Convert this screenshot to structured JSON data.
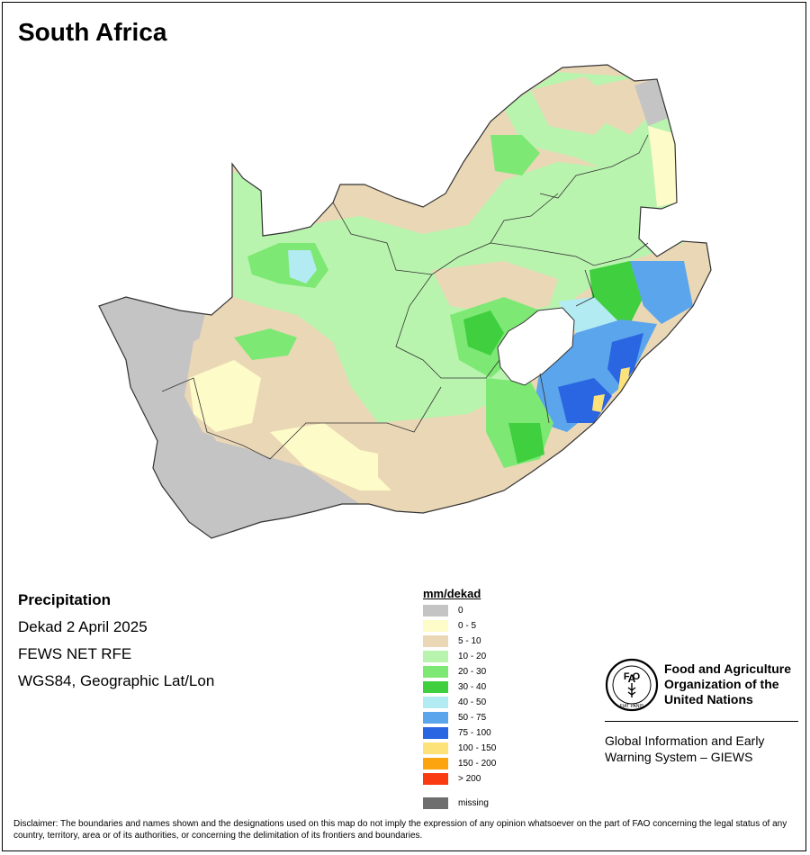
{
  "map": {
    "title": "South Africa",
    "colors": {
      "background": "#ffffff",
      "border": "#333333",
      "missing_region": "#c4c4c4",
      "lesotho": "#ffffff"
    }
  },
  "info": {
    "heading": "Precipitation",
    "period": "Dekad 2 April 2025",
    "source": "FEWS NET RFE",
    "projection": "WGS84, Geographic Lat/Lon"
  },
  "legend": {
    "title": "mm/dekad",
    "items": [
      {
        "label": "0",
        "color": "#c4c4c4"
      },
      {
        "label": "0 - 5",
        "color": "#fdfbc8"
      },
      {
        "label": "5 - 10",
        "color": "#ead7b6"
      },
      {
        "label": "10 - 20",
        "color": "#b9f4ae"
      },
      {
        "label": "20 - 30",
        "color": "#7ee874"
      },
      {
        "label": "30 - 40",
        "color": "#3fcf3f"
      },
      {
        "label": "40 - 50",
        "color": "#b3ebf2"
      },
      {
        "label": "50 - 75",
        "color": "#5ba5ec"
      },
      {
        "label": "75 - 100",
        "color": "#2a66e2"
      },
      {
        "label": "100 - 150",
        "color": "#fde27a"
      },
      {
        "label": "150 - 200",
        "color": "#fca310"
      },
      {
        "label": "> 200",
        "color": "#fa3a10"
      }
    ],
    "missing": {
      "label": "missing",
      "color": "#6e6e6e"
    }
  },
  "org": {
    "logo_icon": "fao-logo-icon",
    "name_lines": [
      "Food and Agriculture",
      "Organization of the",
      "United Nations"
    ],
    "system_lines": [
      "Global Information and Early",
      "Warning System – GIEWS"
    ],
    "logo_text": "FIAT PANIS"
  },
  "disclaimer": "Disclaimer: The boundaries and names shown and the designations used on this map do not imply the expression of any opinion whatsoever on the part of FAO concerning the legal status of any country, territory, area or of its authorities, or concerning the delimitation of its frontiers and boundaries."
}
